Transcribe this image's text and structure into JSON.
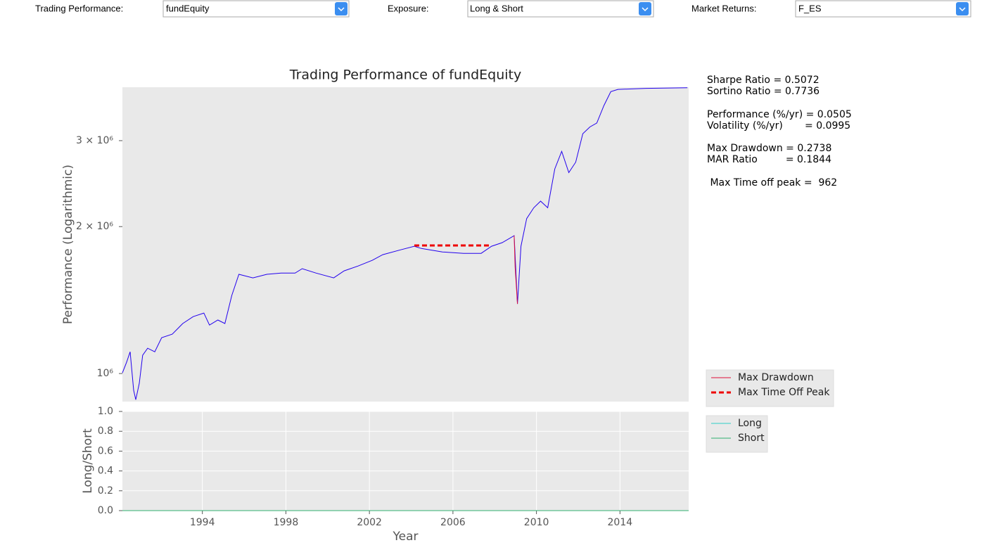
{
  "controls": [
    {
      "label": "Trading Performance:",
      "value": "fundEquity"
    },
    {
      "label": "Exposure:",
      "value": "Long & Short"
    },
    {
      "label": "Market Returns:",
      "value": "F_ES"
    }
  ],
  "stats": [
    "Sharpe Ratio = 0.5072",
    "Sortino Ratio = 0.7736",
    "Performance (%/yr) = 0.0505",
    "Volatility (%/yr)       = 0.0995",
    "Max Drawdown = 0.2738",
    "MAR Ratio         = 0.1844",
    " Max Time off peak =  962"
  ],
  "chart_data": [
    {
      "type": "line",
      "title": "Trading Performance of fundEquity",
      "ylabel": "Performance (Logarithmic)",
      "log_scale": true,
      "xlim": [
        1990.17,
        2017.29
      ],
      "ylim": [
        876000,
        3860000
      ],
      "yticks": [
        {
          "value": 1000000,
          "label": "10⁶"
        },
        {
          "value": 2000000,
          "label": "2 × 10⁶"
        },
        {
          "value": 3000000,
          "label": "3 × 10⁶"
        }
      ],
      "legend": "outside-right",
      "series": [
        {
          "color": "#2200ee",
          "x": [
            1990.17,
            1990.37,
            1990.54,
            1990.71,
            1990.81,
            1990.98,
            1991.14,
            1991.38,
            1991.72,
            1992.05,
            1992.56,
            1993.06,
            1993.56,
            1994.07,
            1994.34,
            1994.74,
            1995.08,
            1995.41,
            1995.75,
            1996.42,
            1997.09,
            1997.77,
            1998.44,
            1998.78,
            1999.45,
            2000.29,
            2000.79,
            2001.46,
            2002.14,
            2002.64,
            2003.48,
            2004.15,
            2004.49,
            2005.5,
            2006.51,
            2007.35,
            2007.85,
            2008.36,
            2008.93,
            2009.09,
            2009.26,
            2009.53,
            2009.87,
            2010.2,
            2010.54,
            2010.88,
            2011.21,
            2011.55,
            2011.88,
            2012.22,
            2012.56,
            2012.89,
            2013.23,
            2013.56,
            2013.9,
            2015.25,
            2017.23
          ],
          "values": [
            1003000,
            1054000,
            1108000,
            924000,
            884000,
            955000,
            1090000,
            1127000,
            1108000,
            1184000,
            1204000,
            1266000,
            1308000,
            1330000,
            1257000,
            1287000,
            1266000,
            1445000,
            1597000,
            1570000,
            1597000,
            1606000,
            1606000,
            1640000,
            1606000,
            1570000,
            1623000,
            1661000,
            1706000,
            1752000,
            1792000,
            1823000,
            1804000,
            1775000,
            1763000,
            1763000,
            1823000,
            1854000,
            1916000,
            1389000,
            1823000,
            2077000,
            2186000,
            2255000,
            2186000,
            2626000,
            2852000,
            2580000,
            2710000,
            3100000,
            3200000,
            3260000,
            3540000,
            3780000,
            3820000,
            3840000,
            3850000
          ]
        },
        {
          "name": "Max Drawdown",
          "color": "#e0103a",
          "x": [
            2008.93,
            2008.98,
            2009.09
          ],
          "values": [
            1916000,
            1650000,
            1389000
          ]
        },
        {
          "name": "Max Time Off Peak",
          "color": "#ee0000",
          "linestyle": "dashed",
          "x": [
            2004.15,
            2007.85
          ],
          "values": [
            1830000,
            1830000
          ]
        }
      ]
    },
    {
      "type": "line",
      "ylabel": "Long/Short",
      "xlabel": "Year",
      "grid": true,
      "xlim": [
        1990.17,
        2017.29
      ],
      "xticks": [
        1994,
        1998,
        2002,
        2006,
        2010,
        2014
      ],
      "ylim": [
        0,
        1
      ],
      "yticks": [
        {
          "value": 0,
          "label": "0.0"
        },
        0.2,
        0.4,
        0.6,
        0.8,
        {
          "value": 1,
          "label": "1.0"
        }
      ],
      "legend": "outside-right",
      "series": [
        {
          "name": "Long",
          "color": "#30d0c8",
          "x": [
            1990.17,
            2017.29
          ],
          "values": [
            0,
            0
          ]
        },
        {
          "name": "Short",
          "color": "#30b070",
          "x": [
            1990.17,
            2017.29
          ],
          "values": [
            0,
            0
          ]
        }
      ]
    }
  ]
}
